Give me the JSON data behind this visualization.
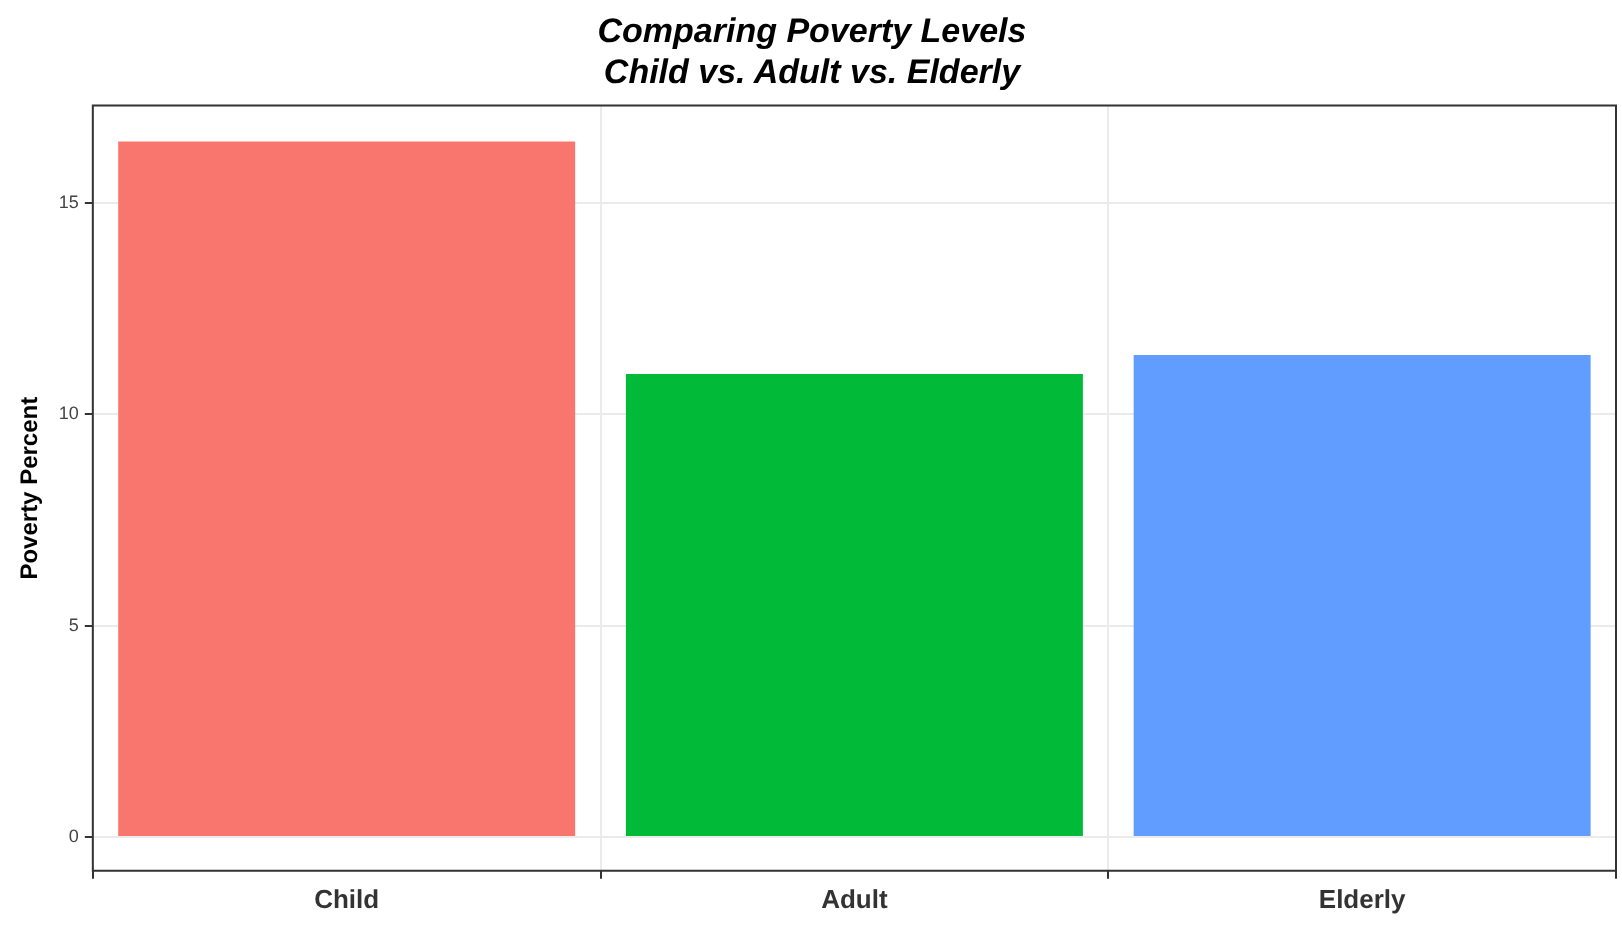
{
  "chart_data": {
    "type": "bar",
    "title": "Comparing Poverty Levels\nChild vs. Adult vs. Elderly",
    "ylabel": "Poverty Percent",
    "categories": [
      "Child",
      "Adult",
      "Elderly"
    ],
    "values": [
      16.45,
      10.95,
      11.4
    ],
    "colors": [
      "#f8766d",
      "#00ba38",
      "#619cff"
    ],
    "ylim": [
      -0.8,
      17.3
    ],
    "yticks": [
      0,
      5,
      10,
      15
    ],
    "grid": true,
    "legend": false
  }
}
